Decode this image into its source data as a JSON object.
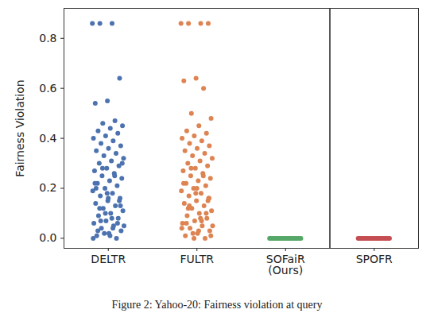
{
  "chart_data": {
    "type": "strip",
    "caption": "Figure 2: Yahoo-20: Fairness violation at query",
    "y_label": "Fairness Violation",
    "categories": [
      "DELTR",
      "FULTR",
      "SOFaiR\n(Ours)",
      "SPOFR"
    ],
    "colors": [
      "#4c72b0",
      "#dd8452",
      "#55a868",
      "#c44e52"
    ],
    "values": [
      [
        0.86,
        0.86,
        0.86,
        0.64,
        0.55,
        0.54,
        0.47,
        0.46,
        0.45,
        0.44,
        0.43,
        0.42,
        0.41,
        0.4,
        0.39,
        0.38,
        0.37,
        0.36,
        0.35,
        0.34,
        0.33,
        0.32,
        0.31,
        0.3,
        0.29,
        0.28,
        0.27,
        0.26,
        0.25,
        0.24,
        0.23,
        0.22,
        0.21,
        0.2,
        0.19,
        0.18,
        0.17,
        0.16,
        0.15,
        0.14,
        0.13,
        0.12,
        0.11,
        0.1,
        0.09,
        0.08,
        0.07,
        0.06,
        0.05,
        0.04,
        0.03,
        0.02,
        0.01,
        0.0,
        0.02,
        0.05,
        0.08,
        0.12,
        0.15,
        0.18,
        0.22,
        0.25,
        0.28,
        0.3,
        0.01,
        0.03,
        0.06,
        0.1,
        0.0,
        0.04,
        0.07,
        0.13,
        0.16,
        0.2
      ],
      [
        0.86,
        0.86,
        0.86,
        0.86,
        0.64,
        0.63,
        0.6,
        0.5,
        0.48,
        0.45,
        0.43,
        0.42,
        0.41,
        0.4,
        0.39,
        0.38,
        0.37,
        0.36,
        0.35,
        0.34,
        0.33,
        0.32,
        0.31,
        0.3,
        0.29,
        0.28,
        0.27,
        0.26,
        0.25,
        0.24,
        0.23,
        0.22,
        0.21,
        0.2,
        0.19,
        0.18,
        0.17,
        0.16,
        0.15,
        0.14,
        0.13,
        0.12,
        0.11,
        0.1,
        0.09,
        0.08,
        0.07,
        0.06,
        0.05,
        0.04,
        0.03,
        0.02,
        0.01,
        0.0,
        0.02,
        0.05,
        0.08,
        0.12,
        0.15,
        0.18,
        0.22,
        0.25,
        0.28,
        0.01,
        0.03,
        0.06,
        0.1,
        0.0,
        0.04,
        0.07,
        0.13,
        0.16,
        0.2
      ],
      [
        0.0,
        0.0,
        0.0,
        0.0,
        0.0,
        0.0,
        0.0,
        0.0,
        0.0,
        0.0,
        0.0,
        0.0,
        0.0,
        0.0,
        0.0,
        0.0,
        0.0,
        0.0,
        0.0,
        0.0,
        0.0,
        0.0,
        0.0,
        0.0
      ],
      [
        0.0,
        0.0,
        0.0,
        0.0,
        0.0,
        0.0,
        0.0,
        0.0,
        0.0,
        0.0,
        0.0,
        0.0,
        0.0,
        0.0,
        0.0,
        0.0,
        0.0,
        0.0,
        0.0,
        0.0,
        0.0,
        0.0,
        0.0,
        0.0
      ]
    ],
    "ylim": [
      -0.04,
      0.92
    ],
    "yticks": [
      {
        "value": 0,
        "label": "0.0"
      },
      {
        "value": 0.2,
        "label": "0.2"
      },
      {
        "value": 0.4,
        "label": "0.4"
      },
      {
        "value": 0.6,
        "label": "0.6"
      },
      {
        "value": 0.8,
        "label": "0.8"
      }
    ]
  }
}
